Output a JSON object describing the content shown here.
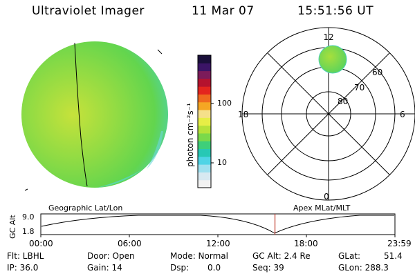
{
  "header": {
    "instrument": "Ultraviolet Imager",
    "date": "11 Mar 07",
    "time": "15:51:56 UT"
  },
  "colorbar": {
    "label": "photon cm⁻²s⁻¹",
    "ticks": [
      "100",
      "10"
    ],
    "colors": [
      "#f2f2f2",
      "#d8e9f1",
      "#9fe0ef",
      "#4fd4e6",
      "#27c8b5",
      "#3ecf7a",
      "#7bd94a",
      "#b6e23a",
      "#e7ee46",
      "#f5e08a",
      "#f5a623",
      "#ef6a1f",
      "#e4251e",
      "#b5122e",
      "#7c1b5a",
      "#3b1466",
      "#1a0f3a"
    ]
  },
  "polar_plot": {
    "mlt_labels": [
      "12",
      "18",
      "6",
      "0"
    ],
    "lat_labels": [
      "60",
      "70",
      "80"
    ]
  },
  "timeline": {
    "ylabel": "GC Alt",
    "left_header": "Geographic Lat/Lon",
    "right_header": "Apex MLat/MLT",
    "y_ticks": [
      "9.0",
      "1.8"
    ],
    "x_ticks": [
      "00:00",
      "06:00",
      "12:00",
      "18:00",
      "23:59"
    ],
    "current_time_hours": 15.87
  },
  "info": {
    "flt": "Flt: LBHL",
    "ip": "IP: 36.0",
    "door": "Door: Open",
    "gain": "Gain: 14",
    "mode": "Mode: Normal",
    "dsp": "Dsp:",
    "dsp_val": "0.0",
    "gc_alt": "GC Alt: 2.4 Re",
    "seq": "Seq: 39",
    "glat": "GLat:",
    "glat_val": "51.4",
    "glon": "GLon: 288.3"
  }
}
